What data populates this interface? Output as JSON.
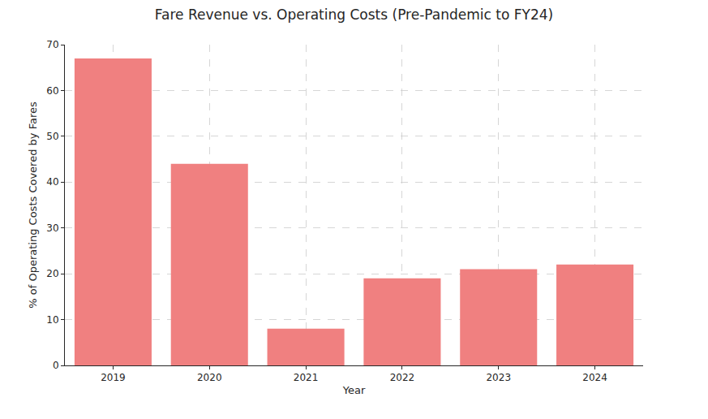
{
  "chart_data": {
    "type": "bar",
    "title": "Fare Revenue vs. Operating Costs (Pre-Pandemic to FY24)",
    "x_label": "Year",
    "y_label": "% of Operating Costs Covered by Fares",
    "categories": [
      "2019",
      "2020",
      "2021",
      "2022",
      "2023",
      "2024"
    ],
    "values": [
      67,
      44,
      8,
      19,
      21,
      22
    ],
    "color": "#f08080",
    "ylim": [
      0,
      70
    ],
    "yticks": [
      0,
      10,
      20,
      30,
      40,
      50,
      60,
      70
    ],
    "grid": true
  }
}
